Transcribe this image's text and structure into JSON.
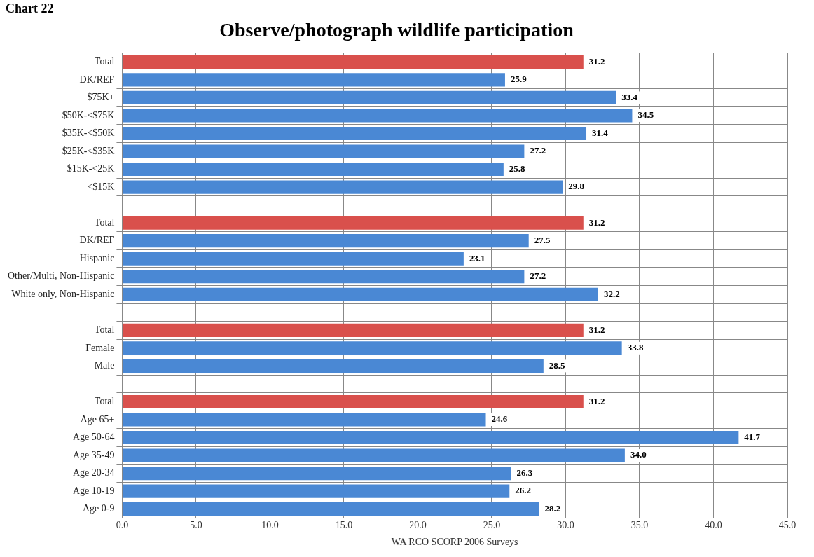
{
  "chart_data": {
    "type": "bar",
    "orientation": "horizontal",
    "title": "Observe/photograph wildlife participation",
    "xlabel": "WA RCO SCORP 2006 Surveys",
    "annotations": [
      "Chart 22"
    ],
    "categories": [
      "Total",
      "DK/REF",
      "$75K+",
      "$50K-<$75K",
      "$35K-<$50K",
      "$25K-<$35K",
      "$15K-<25K",
      "<$15K",
      null,
      "Total",
      "DK/REF",
      "Hispanic",
      "Other/Multi, Non-Hispanic",
      "White only, Non-Hispanic",
      null,
      "Total",
      "Female",
      "Male",
      null,
      "Total",
      "Age 65+",
      "Age 50-64",
      "Age 35-49",
      "Age 20-34",
      "Age 10-19",
      "Age 0-9"
    ],
    "values": [
      31.2,
      25.9,
      33.4,
      34.5,
      31.4,
      27.2,
      25.8,
      29.8,
      null,
      31.2,
      27.5,
      23.1,
      27.2,
      32.2,
      null,
      31.2,
      33.8,
      28.5,
      null,
      31.2,
      24.6,
      41.7,
      34.0,
      26.3,
      26.2,
      28.2
    ],
    "value_labels": [
      "31.2",
      "25.9",
      "33.4",
      "34.5",
      "31.4",
      "27.2",
      "25.8",
      "29.8",
      null,
      "31.2",
      "27.5",
      "23.1",
      "27.2",
      "32.2",
      null,
      "31.2",
      "33.8",
      "28.5",
      null,
      "31.2",
      "24.6",
      "41.7",
      "34.0",
      "26.3",
      "26.2",
      "28.2"
    ],
    "colors": [
      "#d9504c",
      "#4a88d4",
      "#4a88d4",
      "#4a88d4",
      "#4a88d4",
      "#4a88d4",
      "#4a88d4",
      "#4a88d4",
      "#4a88d4",
      "#d9504c",
      "#4a88d4",
      "#4a88d4",
      "#4a88d4",
      "#4a88d4",
      "#4a88d4",
      "#d9504c",
      "#4a88d4",
      "#4a88d4",
      "#4a88d4",
      "#d9504c",
      "#4a88d4",
      "#4a88d4",
      "#4a88d4",
      "#4a88d4",
      "#4a88d4",
      "#4a88d4"
    ],
    "xlim": [
      0,
      45
    ],
    "xticks": [
      {
        "value": 0,
        "label": "0.0"
      },
      {
        "value": 5,
        "label": "5.0"
      },
      {
        "value": 10,
        "label": "10.0"
      },
      {
        "value": 15,
        "label": "15.0"
      },
      {
        "value": 20,
        "label": "20.0"
      },
      {
        "value": 25,
        "label": "25.0"
      },
      {
        "value": 30,
        "label": "30.0"
      },
      {
        "value": 35,
        "label": "35.0"
      },
      {
        "value": 40,
        "label": "40.0"
      },
      {
        "value": 45,
        "label": "45.0"
      }
    ],
    "grid": true,
    "legend": false
  }
}
